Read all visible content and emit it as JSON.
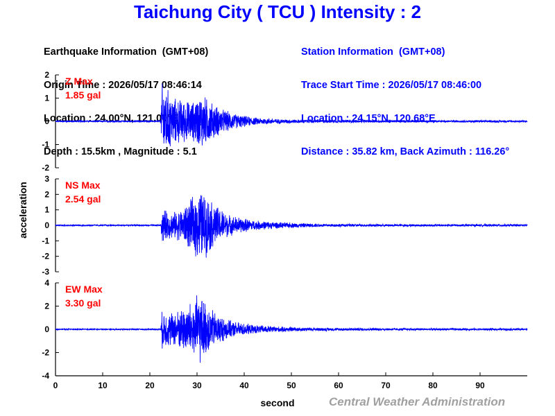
{
  "title": "Taichung City ( TCU ) Intensity : 2",
  "earthquake": {
    "heading": "Earthquake Information  (GMT+08)",
    "origin_time": "Origin Time : 2026/05/17 08:46:14",
    "location": "Location : 24.00°N, 121.00°E",
    "depth_magnitude": "Depth : 15.5km , Magnitude : 5.1"
  },
  "station": {
    "heading": "Station Information  (GMT+08)",
    "trace_start": "Trace Start Time : 2026/05/17 08:46:00",
    "location": "Location : 24.15°N, 120.68°E",
    "distance": "Distance : 35.82 km, Back Azimuth : 116.26°"
  },
  "credit": "Central Weather Administration",
  "colors": {
    "title": "#0000ff",
    "trace": "#0000ff",
    "max_label": "#ff0000",
    "axis": "#000000",
    "credit": "#a0a0a0"
  },
  "chart_data": {
    "type": "line",
    "xlabel": "second",
    "ylabel": "acceleration",
    "xlim": [
      0,
      100
    ],
    "x_ticks": [
      0,
      10,
      20,
      30,
      40,
      50,
      60,
      70,
      80,
      90
    ],
    "grid": false,
    "panels": [
      {
        "name": "Z",
        "max_label": "Z Max",
        "max_value": "1.85 gal",
        "ylim": [
          -2,
          2
        ],
        "y_ticks": [
          2,
          1,
          0,
          -1,
          -2
        ],
        "envelope": {
          "t": [
            0,
            22.3,
            22.6,
            23.5,
            25,
            27,
            29,
            31,
            33,
            35,
            38,
            42,
            48,
            55,
            65,
            80,
            100
          ],
          "amp": [
            0.04,
            0.04,
            1.8,
            1.6,
            1.1,
            1.0,
            0.9,
            1.3,
            0.9,
            0.6,
            0.35,
            0.18,
            0.1,
            0.07,
            0.06,
            0.05,
            0.05
          ]
        }
      },
      {
        "name": "NS",
        "max_label": "NS Max",
        "max_value": "2.54 gal",
        "ylim": [
          -3,
          3
        ],
        "y_ticks": [
          3,
          2,
          1,
          0,
          -1,
          -2,
          -3
        ],
        "envelope": {
          "t": [
            0,
            22.3,
            22.6,
            23.5,
            25,
            27,
            29,
            30.5,
            32,
            34,
            37,
            42,
            48,
            55,
            65,
            80,
            100
          ],
          "amp": [
            0.05,
            0.05,
            1.3,
            1.0,
            0.9,
            1.2,
            1.9,
            2.54,
            2.1,
            1.4,
            0.7,
            0.35,
            0.2,
            0.12,
            0.09,
            0.08,
            0.08
          ]
        }
      },
      {
        "name": "EW",
        "max_label": "EW Max",
        "max_value": "3.30 gal",
        "ylim": [
          -4,
          4
        ],
        "y_ticks": [
          4,
          2,
          0,
          -2,
          -4
        ],
        "envelope": {
          "t": [
            0,
            22.3,
            22.6,
            23.5,
            25,
            27,
            29,
            30.5,
            32,
            34,
            37,
            42,
            48,
            55,
            65,
            80,
            100
          ],
          "amp": [
            0.06,
            0.06,
            1.8,
            1.6,
            1.6,
            2.0,
            2.6,
            3.3,
            2.4,
            1.5,
            0.8,
            0.4,
            0.25,
            0.15,
            0.12,
            0.1,
            0.1
          ]
        }
      }
    ]
  }
}
